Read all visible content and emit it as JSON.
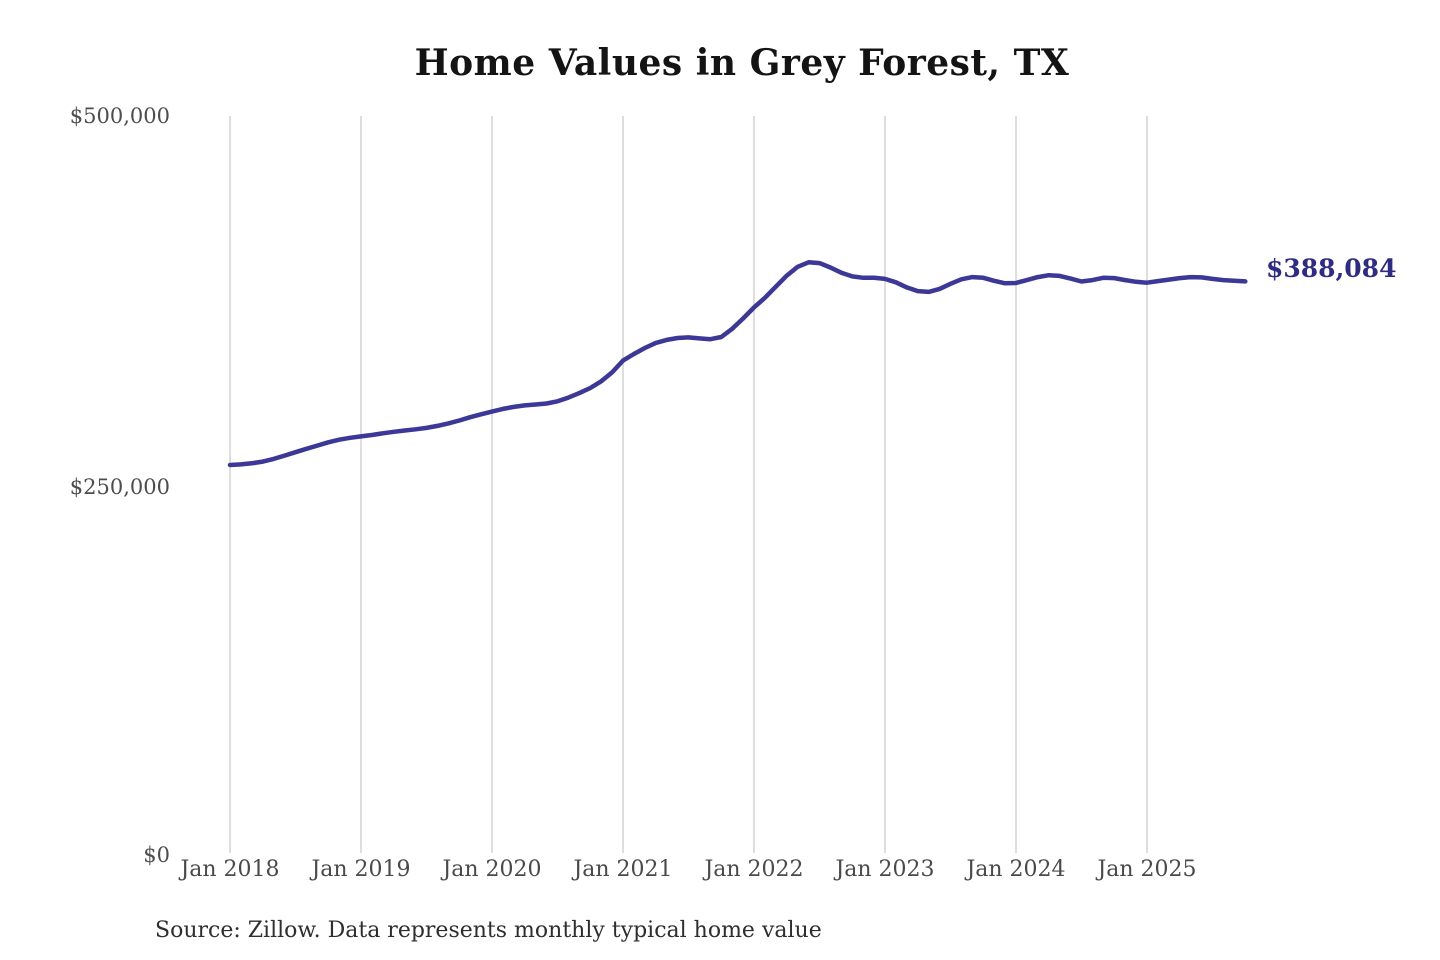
{
  "chart": {
    "title": "Home Values in Grey Forest, TX",
    "latest_value_label": "$388,084",
    "source_note": "Source: Zillow. Data represents monthly typical home value",
    "colors": {
      "line": "#3c3897",
      "latest_value_text": "#2e2b86",
      "gridline": "#cccccc",
      "tick_text": "#4a4a4a",
      "title_text": "#141414"
    }
  },
  "chart_data": {
    "type": "line",
    "title": "Home Values in Grey Forest, TX",
    "ylabel": "",
    "xlabel": "",
    "ylim": [
      0,
      500000
    ],
    "grid": "vertical-only",
    "legend": "none",
    "y_tick_labels": [
      "$0",
      "$250,000",
      "$500,000"
    ],
    "y_tick_values": [
      0,
      250000,
      500000
    ],
    "x_tick_labels": [
      "Jan 2018",
      "Jan 2019",
      "Jan 2020",
      "Jan 2021",
      "Jan 2022",
      "Jan 2023",
      "Jan 2024",
      "Jan 2025"
    ],
    "latest_value": 388084,
    "annotation": "$388,084",
    "series": [
      {
        "name": "Monthly typical home value",
        "interval": "monthly",
        "start_month": "Jan 2018",
        "end_month": "Oct 2025",
        "values": [
          263900,
          264300,
          265000,
          266200,
          268000,
          270200,
          272500,
          274800,
          277000,
          279200,
          281000,
          282300,
          283200,
          284200,
          285300,
          286300,
          287200,
          288000,
          289000,
          290300,
          292000,
          294000,
          296200,
          298200,
          300000,
          301800,
          303200,
          304200,
          304800,
          305500,
          307000,
          309500,
          312500,
          316000,
          320500,
          326500,
          334500,
          339000,
          343000,
          346500,
          348500,
          349800,
          350200,
          349500,
          349000,
          350500,
          356000,
          363000,
          370500,
          377000,
          384500,
          392000,
          398000,
          401000,
          400500,
          397500,
          394000,
          391500,
          390500,
          390500,
          389800,
          387500,
          384000,
          381500,
          381000,
          383000,
          386500,
          389500,
          391000,
          390500,
          388500,
          386800,
          387000,
          389000,
          391000,
          392300,
          391800,
          390000,
          388000,
          389000,
          390500,
          390300,
          389000,
          387800,
          387200,
          388300,
          389300,
          390300,
          391000,
          390800,
          389800,
          389000,
          388500,
          388084
        ]
      }
    ]
  }
}
